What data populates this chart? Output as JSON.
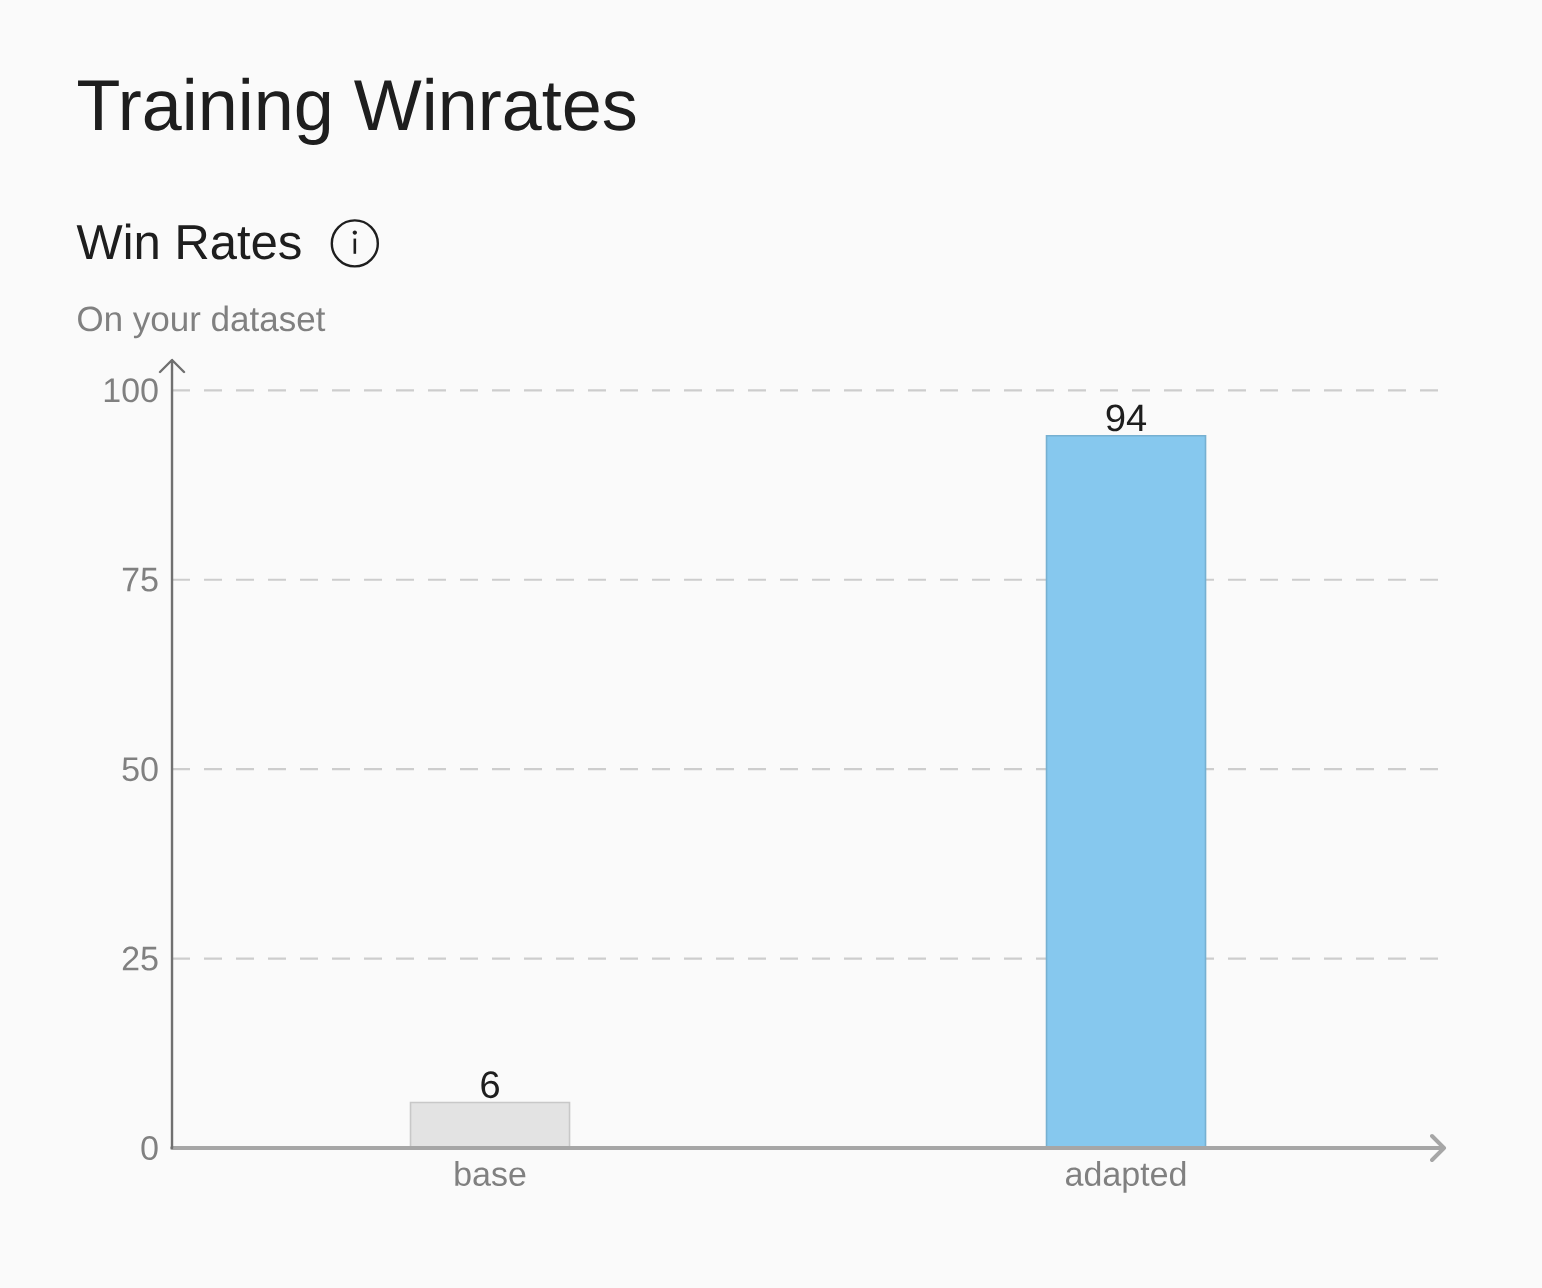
{
  "chart_data": {
    "type": "bar",
    "title": "Training Winrates",
    "subtitle": "Win Rates",
    "annotations": [
      "On your dataset"
    ],
    "categories": [
      "base",
      "adapted"
    ],
    "values": [
      6,
      94
    ],
    "colors": [
      "#e3e3e3",
      "#86c8ee"
    ],
    "ylim": [
      0,
      104
    ],
    "yticks": [
      0,
      25,
      50,
      75,
      100
    ],
    "grid": "y",
    "data_labels": true
  }
}
